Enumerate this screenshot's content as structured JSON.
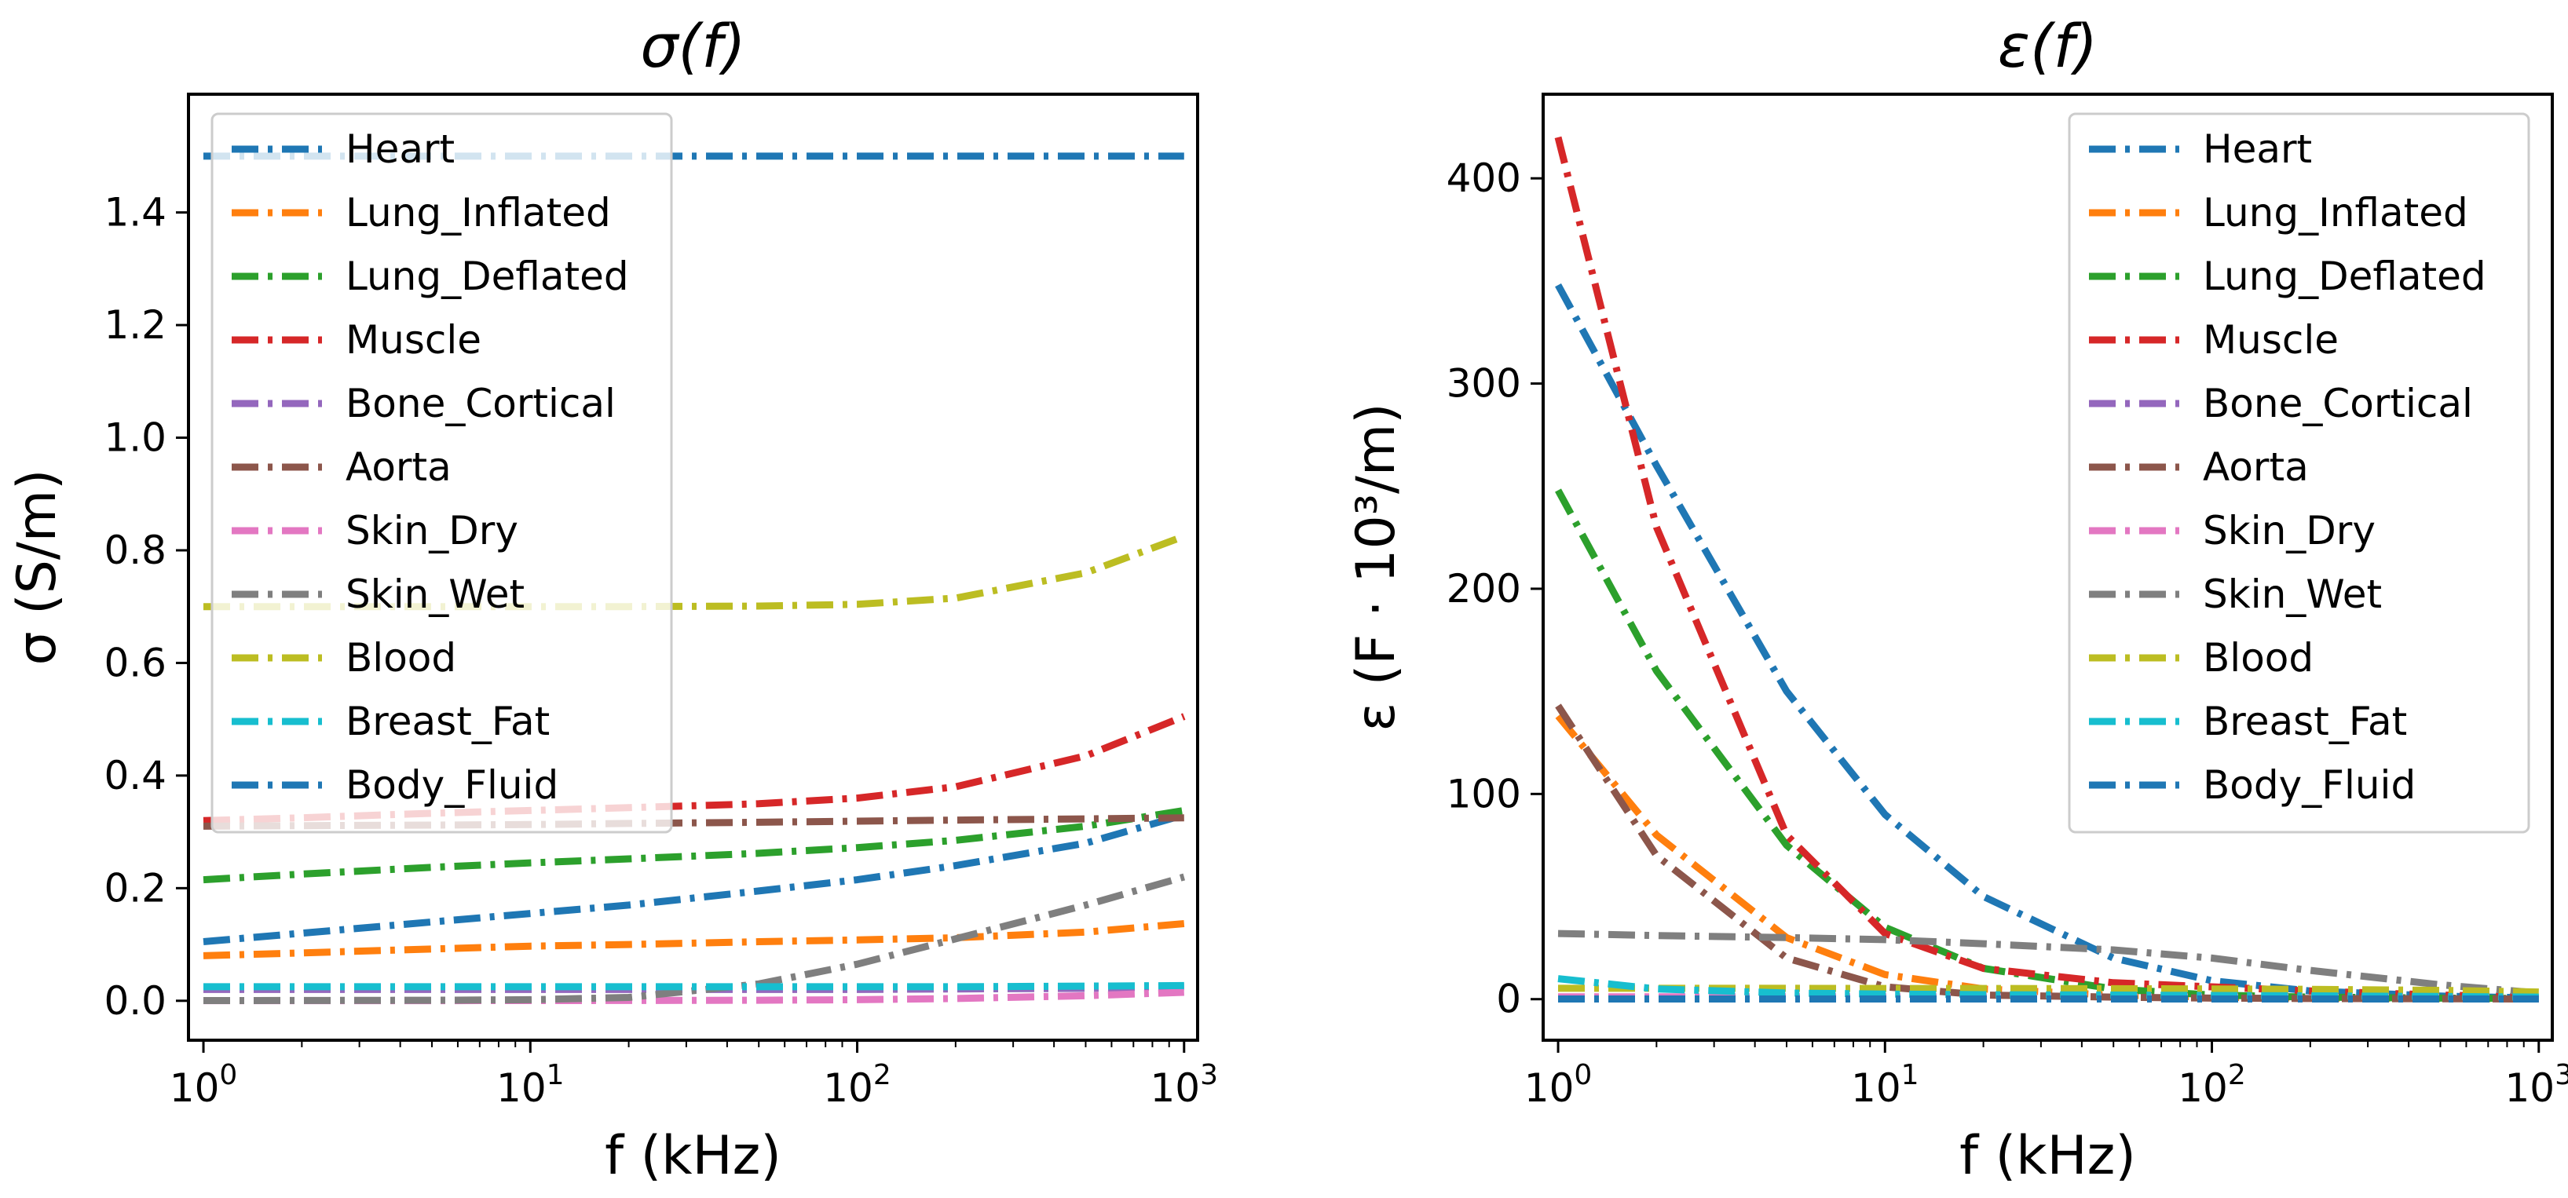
{
  "chart_data": [
    {
      "type": "line",
      "title": "σ(f)",
      "xlabel": "f (kHz)",
      "ylabel": "σ (S/m)",
      "xscale": "log",
      "xlim": [
        0.9,
        1100
      ],
      "ylim": [
        -0.07,
        1.61
      ],
      "x_ticks": [
        1,
        10,
        100,
        1000
      ],
      "x_tick_labels": [
        {
          "base": "10",
          "exp": "0"
        },
        {
          "base": "10",
          "exp": "1"
        },
        {
          "base": "10",
          "exp": "2"
        },
        {
          "base": "10",
          "exp": "3"
        }
      ],
      "y_ticks": [
        0,
        0.2,
        0.4,
        0.6,
        0.8,
        1.0,
        1.2,
        1.4
      ],
      "y_tick_labels": [
        "0.0",
        "0.2",
        "0.4",
        "0.6",
        "0.8",
        "1.0",
        "1.2",
        "1.4"
      ],
      "legend_position": "top-left",
      "x": [
        1,
        2,
        5,
        10,
        20,
        50,
        100,
        200,
        500,
        1000
      ],
      "series": [
        {
          "name": "Heart",
          "color": "#1f77b4",
          "values": [
            0.105,
            0.12,
            0.14,
            0.155,
            0.17,
            0.195,
            0.215,
            0.24,
            0.28,
            0.33
          ]
        },
        {
          "name": "Lung_Inflated",
          "color": "#ff7f0e",
          "values": [
            0.08,
            0.085,
            0.092,
            0.097,
            0.1,
            0.105,
            0.108,
            0.112,
            0.122,
            0.137
          ]
        },
        {
          "name": "Lung_Deflated",
          "color": "#2ca02c",
          "values": [
            0.215,
            0.225,
            0.237,
            0.245,
            0.252,
            0.262,
            0.272,
            0.285,
            0.31,
            0.338
          ]
        },
        {
          "name": "Muscle",
          "color": "#d62728",
          "values": [
            0.32,
            0.325,
            0.333,
            0.338,
            0.343,
            0.35,
            0.36,
            0.38,
            0.435,
            0.505
          ]
        },
        {
          "name": "Bone_Cortical",
          "color": "#9467bd",
          "values": [
            0.02,
            0.02,
            0.02,
            0.02,
            0.02,
            0.02,
            0.02,
            0.021,
            0.022,
            0.025
          ]
        },
        {
          "name": "Aorta",
          "color": "#8c564b",
          "values": [
            0.31,
            0.311,
            0.312,
            0.313,
            0.315,
            0.317,
            0.319,
            0.321,
            0.323,
            0.325
          ]
        },
        {
          "name": "Skin_Dry",
          "color": "#e377c2",
          "values": [
            0.0002,
            0.0002,
            0.0003,
            0.0004,
            0.0006,
            0.001,
            0.002,
            0.004,
            0.009,
            0.015
          ]
        },
        {
          "name": "Skin_Wet",
          "color": "#7f7f7f",
          "values": [
            0.0004,
            0.0006,
            0.001,
            0.002,
            0.006,
            0.03,
            0.065,
            0.11,
            0.17,
            0.22
          ]
        },
        {
          "name": "Blood",
          "color": "#bcbd22",
          "values": [
            0.7,
            0.7,
            0.7,
            0.7,
            0.7,
            0.701,
            0.704,
            0.715,
            0.76,
            0.825
          ]
        },
        {
          "name": "Breast_Fat",
          "color": "#17becf",
          "values": [
            0.025,
            0.025,
            0.025,
            0.025,
            0.025,
            0.025,
            0.025,
            0.025,
            0.026,
            0.027
          ]
        },
        {
          "name": "Body_Fluid",
          "color": "#1f77b4",
          "values": [
            1.5,
            1.5,
            1.5,
            1.5,
            1.5,
            1.5,
            1.5,
            1.5,
            1.5,
            1.5
          ]
        }
      ]
    },
    {
      "type": "line",
      "title": "ε(f)",
      "xlabel": "f (kHz)",
      "ylabel": "ε (F · 10³/m)",
      "xscale": "log",
      "xlim": [
        0.9,
        1100
      ],
      "ylim": [
        -20,
        441
      ],
      "x_ticks": [
        1,
        10,
        100,
        1000
      ],
      "x_tick_labels": [
        {
          "base": "10",
          "exp": "0"
        },
        {
          "base": "10",
          "exp": "1"
        },
        {
          "base": "10",
          "exp": "2"
        },
        {
          "base": "10",
          "exp": "3"
        }
      ],
      "y_ticks": [
        0,
        100,
        200,
        300,
        400
      ],
      "y_tick_labels": [
        "0",
        "100",
        "200",
        "300",
        "400"
      ],
      "legend_position": "top-right",
      "x": [
        1,
        2,
        5,
        10,
        20,
        50,
        100,
        200,
        500,
        1000
      ],
      "series": [
        {
          "name": "Heart",
          "color": "#1f77b4",
          "values": [
            348,
            260,
            150,
            90,
            50,
            20,
            9,
            4,
            1.5,
            0.5
          ]
        },
        {
          "name": "Lung_Inflated",
          "color": "#ff7f0e",
          "values": [
            138,
            80,
            30,
            12,
            5,
            2,
            1,
            0.5,
            0.3,
            0.2
          ]
        },
        {
          "name": "Lung_Deflated",
          "color": "#2ca02c",
          "values": [
            248,
            160,
            75,
            35,
            15,
            5,
            2,
            1,
            0.5,
            0.3
          ]
        },
        {
          "name": "Muscle",
          "color": "#d62728",
          "values": [
            420,
            230,
            80,
            32,
            15,
            8,
            6,
            4,
            2,
            1
          ]
        },
        {
          "name": "Bone_Cortical",
          "color": "#9467bd",
          "values": [
            1.0,
            0.8,
            0.6,
            0.5,
            0.4,
            0.3,
            0.3,
            0.2,
            0.2,
            0.2
          ]
        },
        {
          "name": "Aorta",
          "color": "#8c564b",
          "values": [
            143,
            70,
            20,
            6,
            2,
            1,
            0.5,
            0.3,
            0.2,
            0.1
          ]
        },
        {
          "name": "Skin_Dry",
          "color": "#e377c2",
          "values": [
            1.1,
            1.1,
            1.1,
            1.1,
            1.1,
            1.1,
            1.1,
            1.0,
            1.0,
            0.9
          ]
        },
        {
          "name": "Skin_Wet",
          "color": "#7f7f7f",
          "values": [
            32,
            31,
            30,
            29,
            27,
            24,
            20,
            14,
            7,
            3
          ]
        },
        {
          "name": "Blood",
          "color": "#bcbd22",
          "values": [
            5.3,
            5.3,
            5.3,
            5.2,
            5.2,
            5.1,
            5.0,
            4.8,
            4.3,
            3.5
          ]
        },
        {
          "name": "Breast_Fat",
          "color": "#17becf",
          "values": [
            10,
            5,
            3,
            2.5,
            2.2,
            2,
            1.8,
            1.6,
            1.3,
            1
          ]
        },
        {
          "name": "Body_Fluid",
          "color": "#1f77b4",
          "values": [
            0.1,
            0.1,
            0.1,
            0.1,
            0.1,
            0.1,
            0.1,
            0.1,
            0.1,
            0.1
          ]
        }
      ]
    }
  ]
}
